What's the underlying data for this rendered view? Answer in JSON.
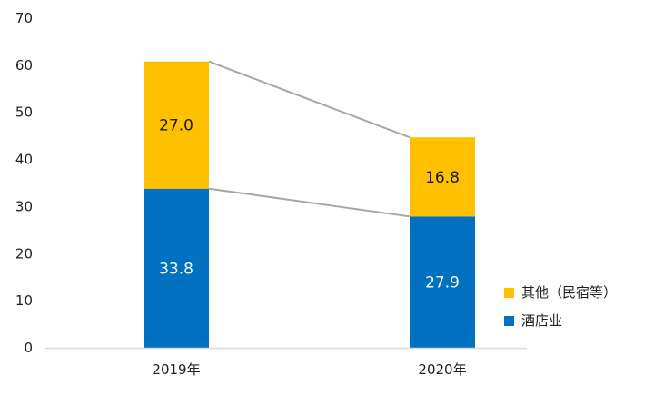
{
  "chart_data": {
    "type": "bar",
    "stacked": true,
    "categories": [
      "2019年",
      "2020年"
    ],
    "series": [
      {
        "name": "酒店业",
        "values": [
          33.8,
          27.9
        ],
        "color": "#0070C0",
        "label_color": "#ffffff"
      },
      {
        "name": "其他（民宿等）",
        "values": [
          27.0,
          16.8
        ],
        "color": "#FFC000",
        "label_color": "#1a1a1a"
      }
    ],
    "data_labels": [
      [
        "33.8",
        "27.9"
      ],
      [
        "27.0",
        "16.8"
      ]
    ],
    "title": "",
    "xlabel": "",
    "ylabel": "",
    "ylim": [
      0,
      70
    ],
    "yticks": [
      0,
      10,
      20,
      30,
      40,
      50,
      60,
      70
    ],
    "grid": false,
    "series_connector_lines": true,
    "connector_color": "#A6A6A6",
    "legend_position": "bottom-right",
    "axis_color": "#D9D9D9"
  }
}
